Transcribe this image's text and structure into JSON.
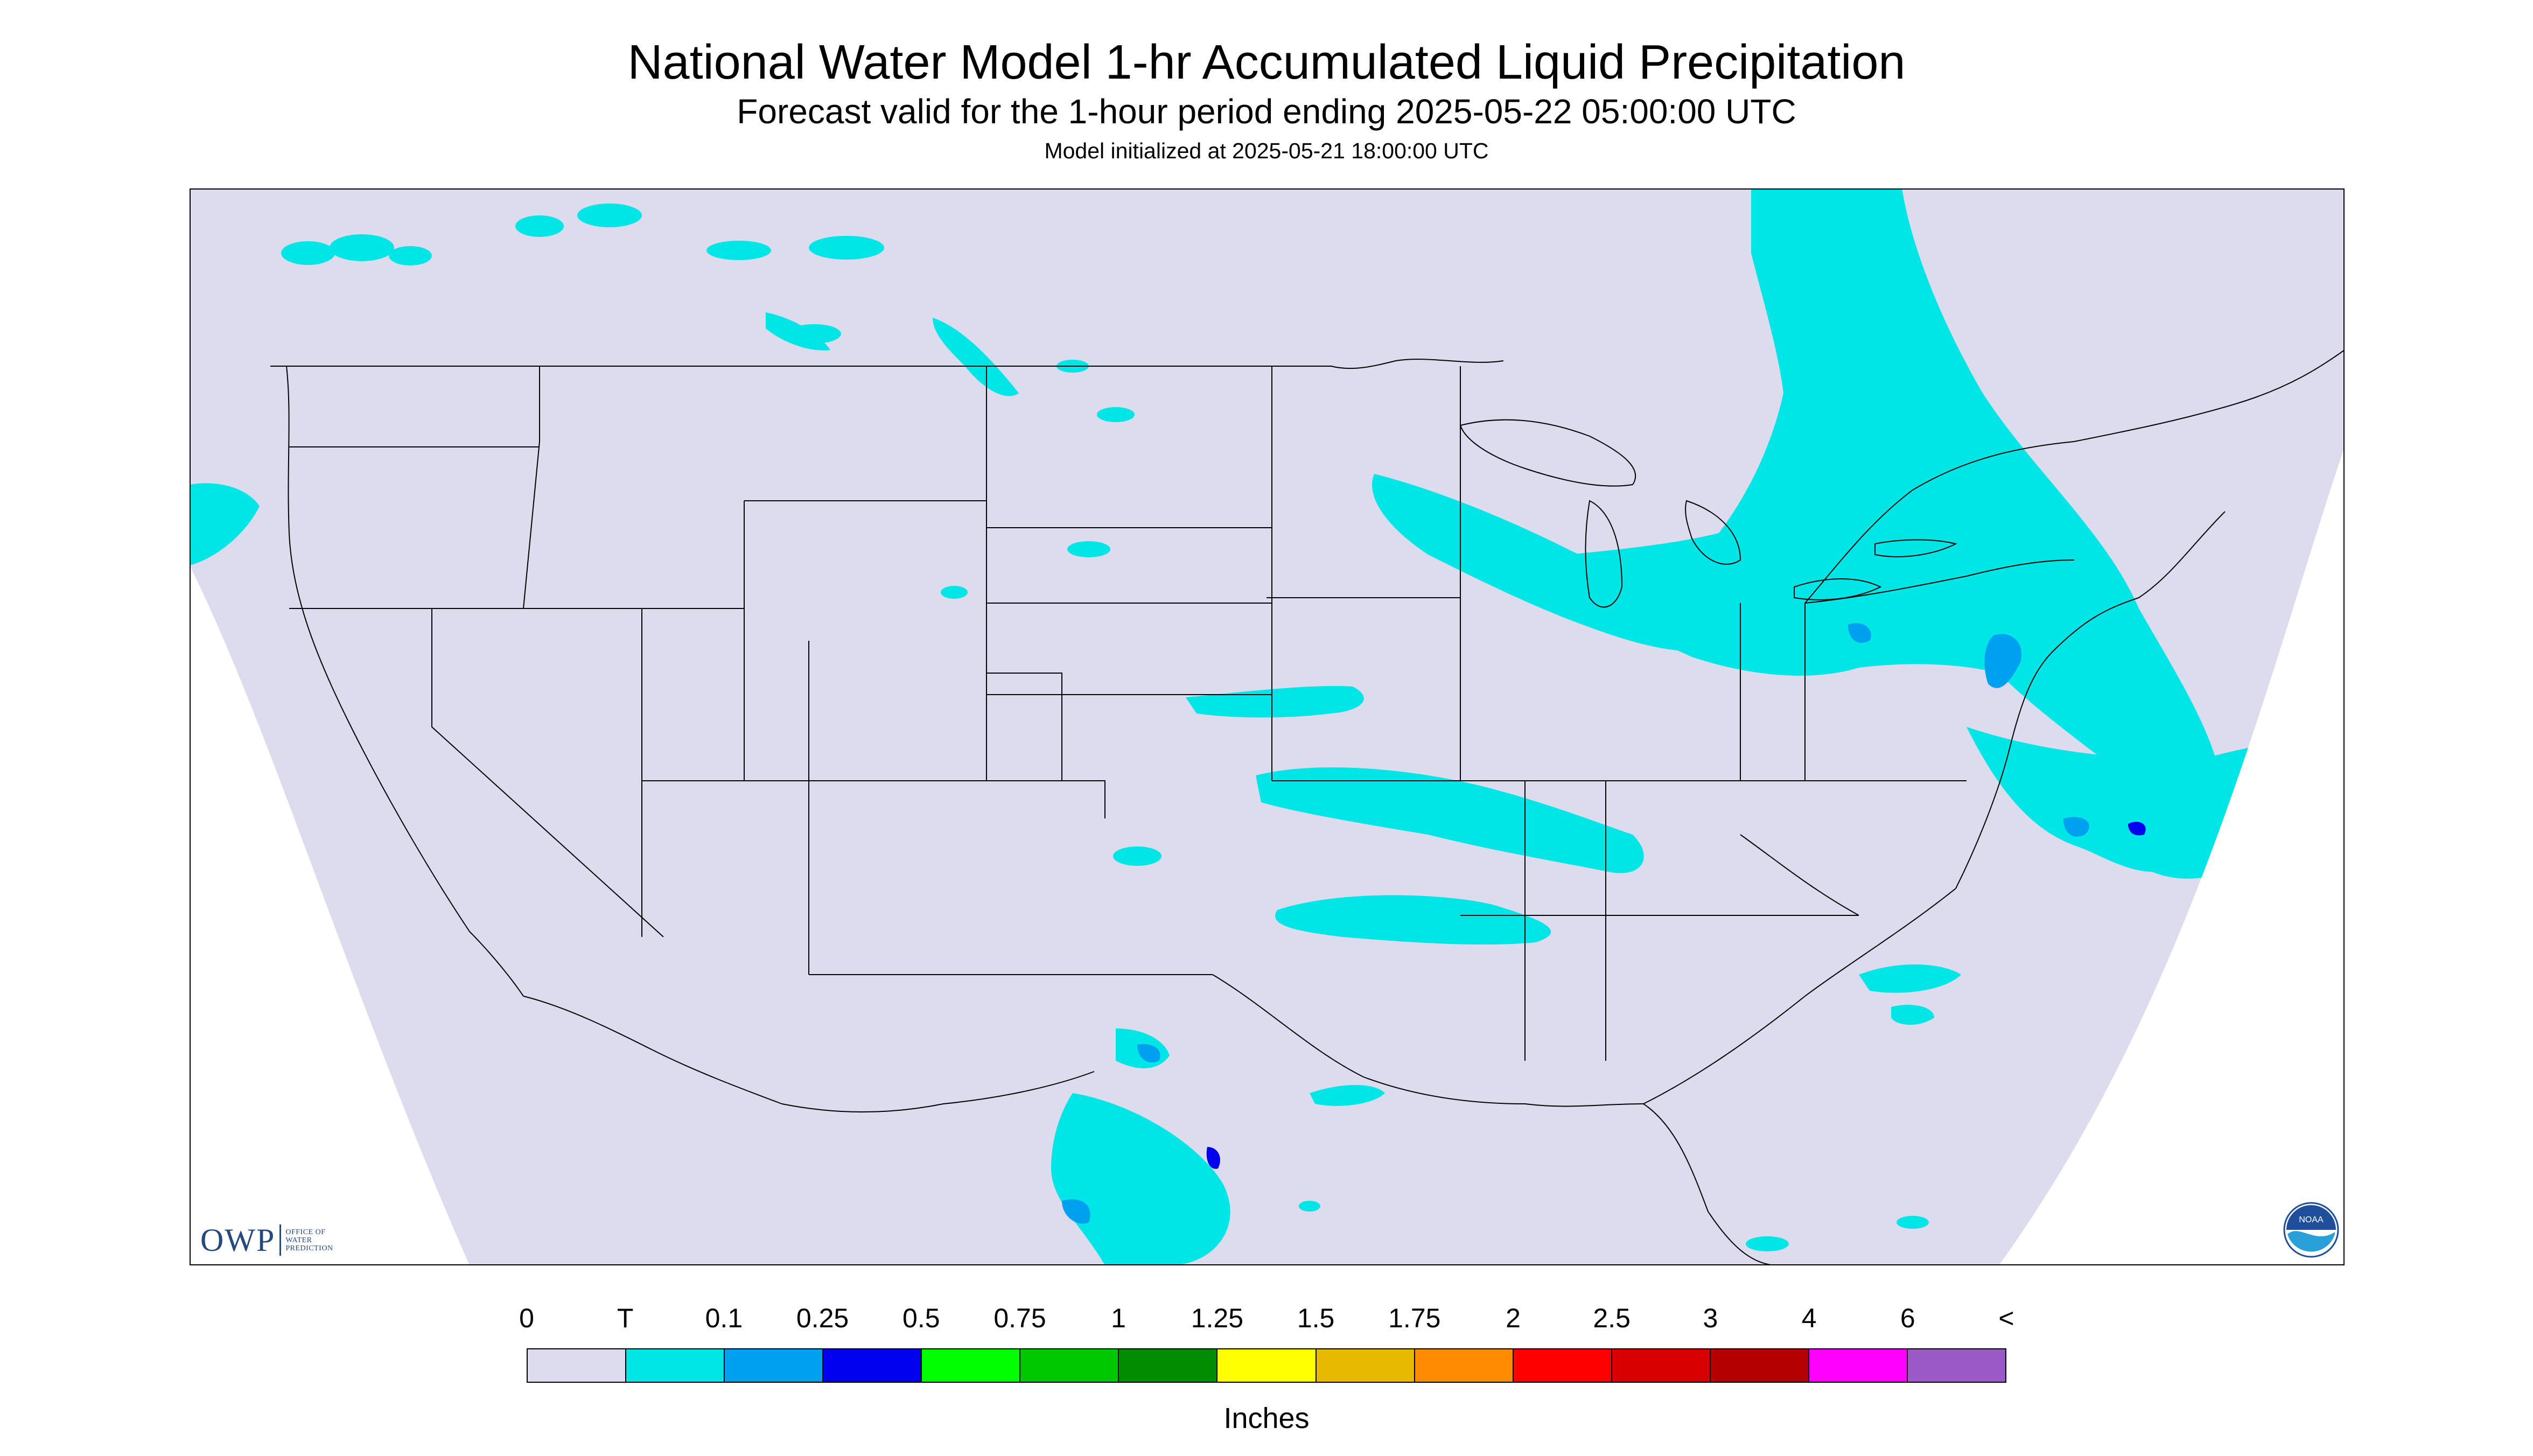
{
  "header": {
    "title": "National Water Model 1-hr Accumulated Liquid Precipitation",
    "subtitle": "Forecast valid for the 1-hour period ending 2025-05-22 05:00:00 UTC",
    "init": "Model initialized at 2025-05-21 18:00:00 UTC"
  },
  "logos": {
    "owp_mark": "OWP",
    "owp_lines": [
      "OFFICE OF",
      "WATER",
      "PREDICTION"
    ],
    "noaa": "NOAA"
  },
  "colors": {
    "background": "#dcdcee",
    "outside": "#ffffff",
    "t": "#00e5e5",
    "p01": "#00a0f0",
    "p025": "#0000ee",
    "borders": "#000000"
  },
  "legend": {
    "tick_labels": [
      "0",
      "T",
      "0.1",
      "0.25",
      "0.5",
      "0.75",
      "1",
      "1.25",
      "1.5",
      "1.75",
      "2",
      "2.5",
      "3",
      "4",
      "6",
      "<"
    ],
    "colors": [
      "#dcdcee",
      "#00e5e5",
      "#00a0f0",
      "#0000ee",
      "#00ff00",
      "#00c800",
      "#008c00",
      "#ffff00",
      "#e6b800",
      "#ff8c00",
      "#ff0000",
      "#d80000",
      "#b40000",
      "#ff00ff",
      "#9b59c8"
    ],
    "units": "Inches"
  }
}
